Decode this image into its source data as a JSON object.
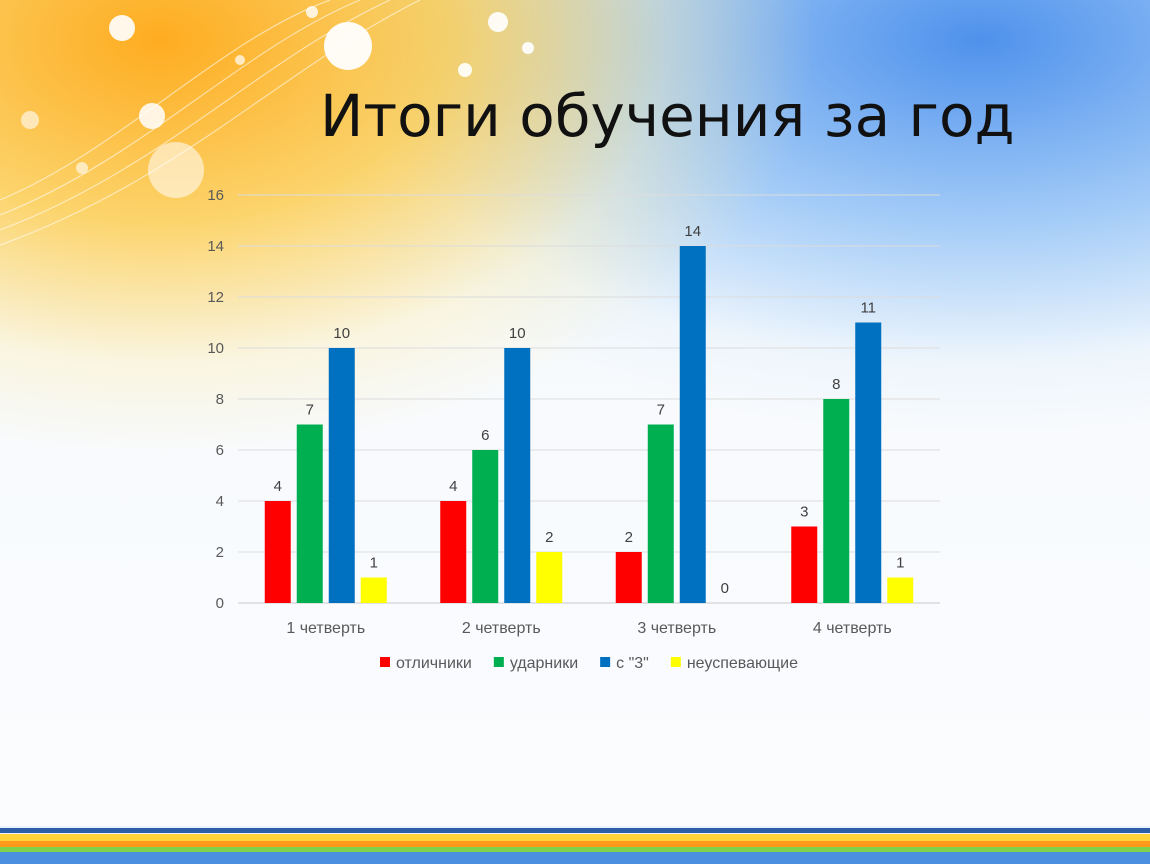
{
  "slide": {
    "title": "Итоги обучения за год"
  },
  "chart_data": {
    "type": "bar",
    "title": "",
    "xlabel": "",
    "ylabel": "",
    "ylim": [
      0,
      16
    ],
    "yticks": [
      0,
      2,
      4,
      6,
      8,
      10,
      12,
      14,
      16
    ],
    "grid": true,
    "legend_position": "bottom",
    "data_labels": true,
    "categories": [
      "1 четверть",
      "2 четверть",
      "3 четверть",
      "4 четверть"
    ],
    "series": [
      {
        "name": "отличники",
        "color": "#ff0000",
        "values": [
          4,
          4,
          2,
          3
        ]
      },
      {
        "name": "ударники",
        "color": "#00b050",
        "values": [
          7,
          6,
          7,
          8
        ]
      },
      {
        "name": "с \"3\"",
        "color": "#0070c0",
        "values": [
          10,
          10,
          14,
          11
        ]
      },
      {
        "name": "неуспевающие",
        "color": "#ffff00",
        "values": [
          1,
          2,
          0,
          1
        ]
      }
    ]
  }
}
